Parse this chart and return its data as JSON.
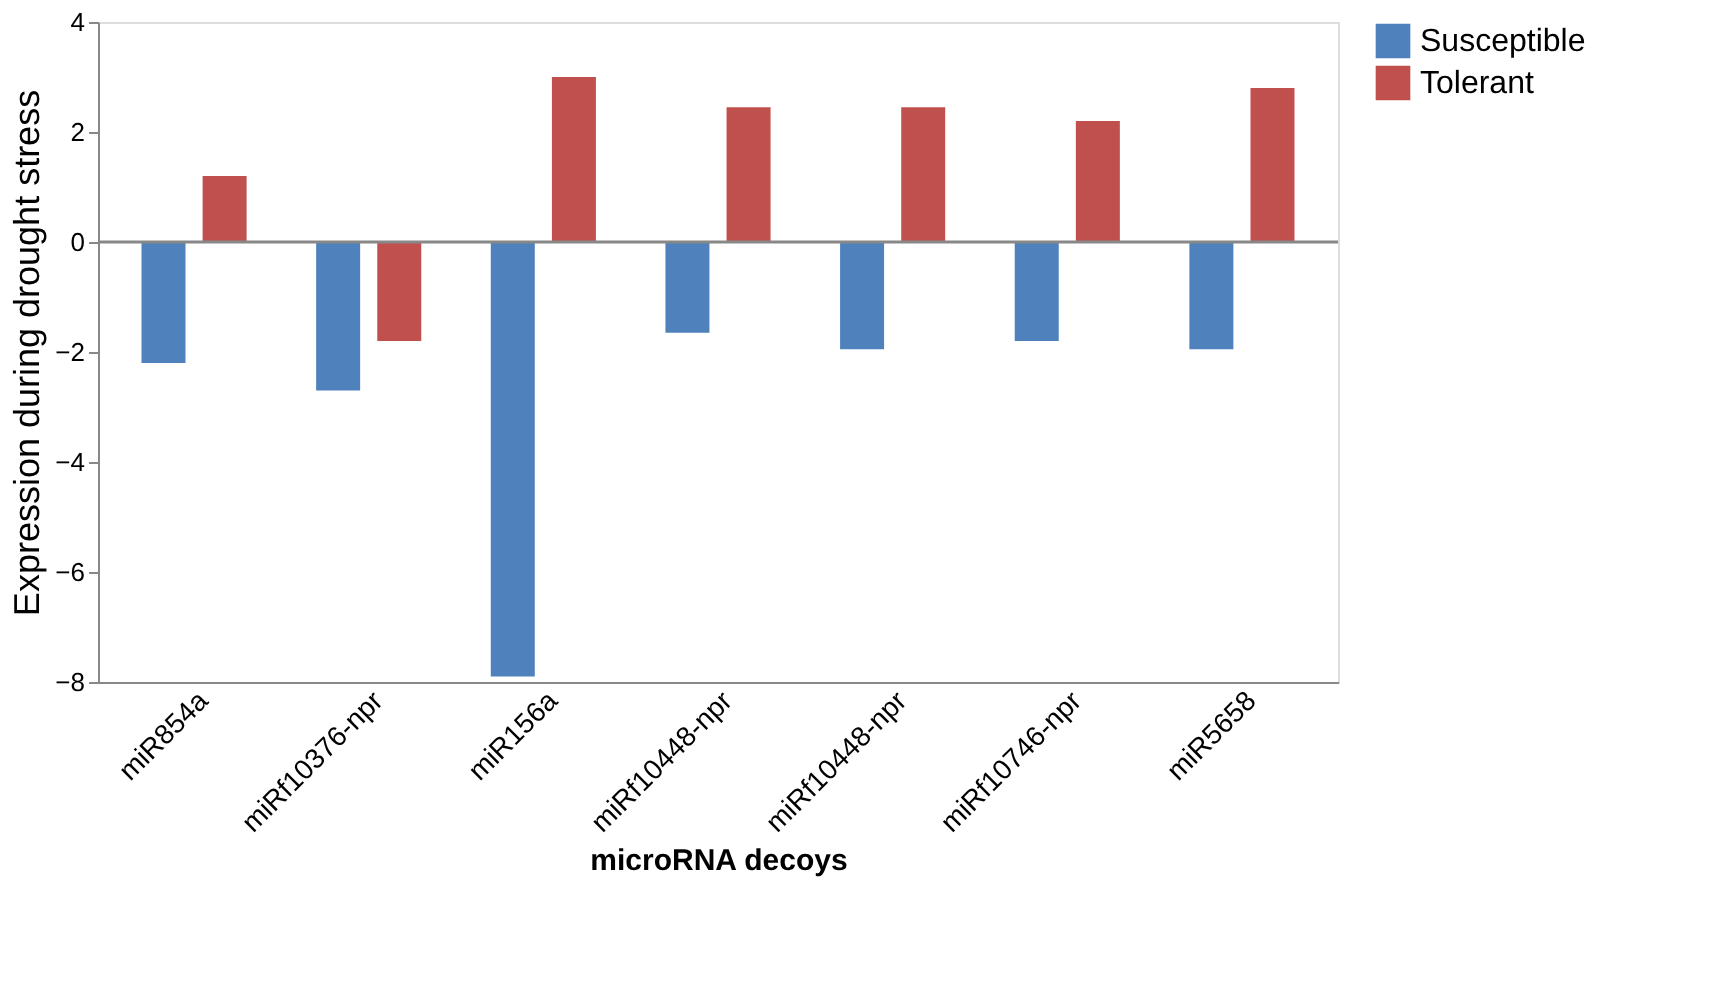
{
  "chart_data": {
    "type": "bar",
    "xlabel": "microRNA decoys",
    "ylabel": "Expression during drought stress",
    "categories": [
      "miR854a",
      "miRf10376-npr",
      "miR156a",
      "miRf10448-npr",
      "miRf10448-npr",
      "miRf10746-npr",
      "miR5658"
    ],
    "series": [
      {
        "name": "Susceptible",
        "color": "#4f81bd",
        "values": [
          -2.2,
          -2.7,
          -7.9,
          -1.65,
          -1.95,
          -1.8,
          -1.95
        ]
      },
      {
        "name": "Tolerant",
        "color": "#c0504d",
        "values": [
          1.2,
          -1.8,
          3.0,
          2.45,
          2.45,
          2.2,
          2.8
        ]
      }
    ],
    "ylim": [
      -8,
      4
    ],
    "yticks": [
      -8,
      -6,
      -4,
      -2,
      0,
      2,
      4
    ],
    "grid": false,
    "ref_lines": [
      {
        "axis": "y",
        "value": 0
      }
    ],
    "legend": "right"
  }
}
